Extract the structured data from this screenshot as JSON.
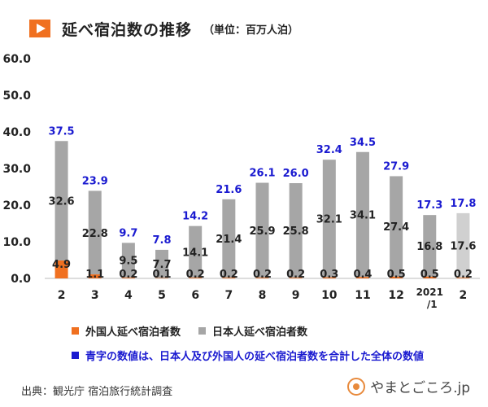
{
  "header": {
    "title": "延べ宿泊数の推移",
    "unit": "（単位：百万人泊）"
  },
  "legend": {
    "foreign_label": "外国人延べ宿泊者数",
    "japanese_label": "日本人延べ宿泊者数",
    "note": "青字の数値は、日本人及び外国人の延べ宿泊者数を合計した全体の数値"
  },
  "source": "出典：観光庁 宿泊旅行統計調査",
  "logo_text": "やまとごころ.jp",
  "colors": {
    "foreign": "#f07020",
    "japanese": "#a6a6a6",
    "japanese_light": "#d0d0d0",
    "total_text": "#1a1ad0",
    "accent": "#f07020"
  },
  "chart_data": {
    "type": "bar",
    "stacked": true,
    "title": "延べ宿泊数の推移",
    "unit": "百万人泊",
    "categories": [
      "2",
      "3",
      "4",
      "5",
      "6",
      "7",
      "8",
      "9",
      "10",
      "11",
      "12",
      "2021/1",
      "2"
    ],
    "category_labels": [
      [
        "2"
      ],
      [
        "3"
      ],
      [
        "4"
      ],
      [
        "5"
      ],
      [
        "6"
      ],
      [
        "7"
      ],
      [
        "8"
      ],
      [
        "9"
      ],
      [
        "10"
      ],
      [
        "11"
      ],
      [
        "12"
      ],
      [
        "2021",
        "/1"
      ],
      [
        "2"
      ]
    ],
    "series": [
      {
        "name": "外国人延べ宿泊者数",
        "values": [
          4.9,
          1.1,
          0.2,
          0.1,
          0.2,
          0.2,
          0.2,
          0.2,
          0.3,
          0.4,
          0.5,
          0.5,
          0.2
        ]
      },
      {
        "name": "日本人延べ宿泊者数",
        "values": [
          32.6,
          22.8,
          9.5,
          7.7,
          14.1,
          21.4,
          25.9,
          25.8,
          32.1,
          34.1,
          27.4,
          16.8,
          17.6
        ]
      }
    ],
    "totals": [
      37.5,
      23.9,
      9.7,
      7.8,
      14.2,
      21.6,
      26.1,
      26.0,
      32.4,
      34.5,
      27.9,
      17.3,
      17.8
    ],
    "foreign_labels": [
      "4.9",
      "1.1",
      "0.2",
      "0.1",
      "0.2",
      "0.2",
      "0.2",
      "0.2",
      "0.3",
      "0.4",
      "0.5",
      "0.5",
      "0.2"
    ],
    "japanese_labels": [
      "32.6",
      "22.8",
      "9.5",
      "7.7",
      "14.1",
      "21.4",
      "25.9",
      "25.8",
      "32.1",
      "34.1",
      "27.4",
      "16.8",
      "17.6"
    ],
    "total_labels": [
      "37.5",
      "23.9",
      "9.7",
      "7.8",
      "14.2",
      "21.6",
      "26.1",
      "26.0",
      "32.4",
      "34.5",
      "27.9",
      "17.3",
      "17.8"
    ],
    "highlight_last": true,
    "ylim": [
      0,
      60
    ],
    "yticks": [
      0,
      10,
      20,
      30,
      40,
      50,
      60
    ],
    "ytick_labels": [
      "0.0",
      "10.0",
      "20.0",
      "30.0",
      "40.0",
      "50.0",
      "60.0"
    ],
    "xlabel": "",
    "ylabel": ""
  }
}
